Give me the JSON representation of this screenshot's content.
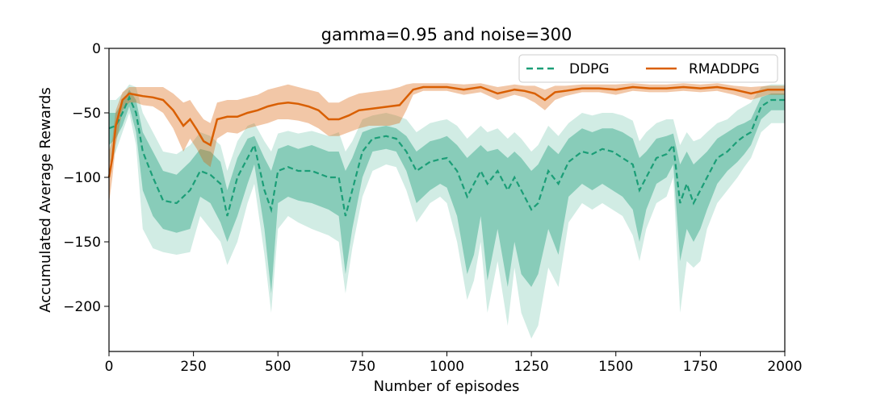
{
  "chart_data": {
    "type": "line",
    "title": "gamma=0.95 and noise=300",
    "xlabel": "Number of episodes",
    "ylabel": "Accumulated Average Rewards",
    "xlim": [
      0,
      2000
    ],
    "ylim": [
      -235,
      0
    ],
    "xticks": [
      0,
      250,
      500,
      750,
      1000,
      1250,
      1500,
      1750,
      2000
    ],
    "yticks": [
      0,
      -50,
      -100,
      -150,
      -200
    ],
    "xtick_labels": [
      "0",
      "250",
      "500",
      "750",
      "1000",
      "1250",
      "1500",
      "1750",
      "2000"
    ],
    "ytick_labels": [
      "0",
      "−50",
      "−100",
      "−150",
      "−200"
    ],
    "legend": {
      "placement": "top-right",
      "entries": [
        "DDPG",
        "RMADDPG"
      ]
    },
    "series": [
      {
        "name": "DDPG",
        "color": "#1b9e77",
        "style": "dashed",
        "x": [
          0,
          20,
          40,
          60,
          80,
          100,
          130,
          160,
          200,
          240,
          270,
          300,
          330,
          350,
          380,
          410,
          430,
          460,
          480,
          500,
          530,
          560,
          600,
          650,
          680,
          700,
          720,
          750,
          780,
          820,
          850,
          880,
          910,
          950,
          980,
          1000,
          1030,
          1060,
          1080,
          1100,
          1120,
          1150,
          1180,
          1200,
          1220,
          1250,
          1270,
          1300,
          1330,
          1360,
          1400,
          1430,
          1460,
          1490,
          1520,
          1550,
          1570,
          1590,
          1620,
          1650,
          1670,
          1690,
          1710,
          1730,
          1750,
          1770,
          1800,
          1830,
          1860,
          1880,
          1900,
          1930,
          1960,
          2000
        ],
        "mean": [
          -62,
          -60,
          -50,
          -38,
          -50,
          -80,
          -100,
          -118,
          -120,
          -110,
          -95,
          -98,
          -105,
          -130,
          -100,
          -85,
          -75,
          -110,
          -125,
          -95,
          -92,
          -95,
          -95,
          -100,
          -100,
          -130,
          -110,
          -80,
          -70,
          -68,
          -70,
          -80,
          -95,
          -88,
          -86,
          -85,
          -95,
          -115,
          -105,
          -95,
          -105,
          -95,
          -110,
          -100,
          -110,
          -125,
          -120,
          -95,
          -105,
          -88,
          -80,
          -82,
          -78,
          -80,
          -85,
          -90,
          -110,
          -100,
          -85,
          -82,
          -75,
          -120,
          -105,
          -120,
          -110,
          -100,
          -85,
          -80,
          -72,
          -68,
          -65,
          -45,
          -40,
          -40
        ],
        "inner_lower": [
          -75,
          -70,
          -60,
          -45,
          -65,
          -110,
          -130,
          -140,
          -143,
          -140,
          -115,
          -120,
          -135,
          -150,
          -130,
          -105,
          -90,
          -140,
          -190,
          -120,
          -115,
          -118,
          -120,
          -125,
          -130,
          -175,
          -140,
          -100,
          -80,
          -78,
          -80,
          -95,
          -120,
          -110,
          -105,
          -108,
          -130,
          -175,
          -160,
          -130,
          -180,
          -140,
          -185,
          -150,
          -175,
          -185,
          -175,
          -140,
          -160,
          -115,
          -105,
          -110,
          -105,
          -110,
          -115,
          -125,
          -150,
          -125,
          -105,
          -100,
          -90,
          -165,
          -140,
          -150,
          -140,
          -125,
          -105,
          -95,
          -88,
          -82,
          -75,
          -55,
          -48,
          -48
        ],
        "inner_upper": [
          -50,
          -50,
          -42,
          -32,
          -40,
          -65,
          -80,
          -95,
          -98,
          -88,
          -78,
          -80,
          -88,
          -110,
          -85,
          -70,
          -68,
          -85,
          -95,
          -78,
          -75,
          -78,
          -75,
          -80,
          -80,
          -95,
          -85,
          -65,
          -62,
          -60,
          -62,
          -68,
          -80,
          -72,
          -70,
          -68,
          -75,
          -85,
          -80,
          -75,
          -80,
          -78,
          -85,
          -80,
          -85,
          -95,
          -90,
          -75,
          -82,
          -70,
          -62,
          -65,
          -62,
          -62,
          -65,
          -70,
          -85,
          -80,
          -70,
          -68,
          -66,
          -90,
          -80,
          -90,
          -85,
          -80,
          -70,
          -65,
          -60,
          -58,
          -55,
          -38,
          -35,
          -35
        ],
        "outer_lower": [
          -90,
          -80,
          -65,
          -50,
          -75,
          -140,
          -155,
          -158,
          -160,
          -158,
          -130,
          -140,
          -150,
          -168,
          -150,
          -120,
          -105,
          -160,
          -205,
          -140,
          -130,
          -135,
          -140,
          -145,
          -150,
          -190,
          -155,
          -115,
          -95,
          -90,
          -92,
          -110,
          -135,
          -120,
          -115,
          -120,
          -150,
          -195,
          -180,
          -150,
          -205,
          -165,
          -215,
          -170,
          -205,
          -225,
          -215,
          -170,
          -185,
          -135,
          -120,
          -125,
          -120,
          -125,
          -130,
          -145,
          -165,
          -140,
          -120,
          -115,
          -100,
          -205,
          -165,
          -170,
          -165,
          -140,
          -120,
          -110,
          -100,
          -92,
          -85,
          -65,
          -58,
          -58
        ],
        "outer_upper": [
          -40,
          -40,
          -35,
          -28,
          -30,
          -50,
          -65,
          -80,
          -82,
          -75,
          -65,
          -68,
          -75,
          -95,
          -72,
          -60,
          -58,
          -72,
          -80,
          -66,
          -64,
          -66,
          -64,
          -68,
          -65,
          -80,
          -72,
          -55,
          -52,
          -50,
          -52,
          -55,
          -65,
          -58,
          -56,
          -55,
          -60,
          -70,
          -65,
          -60,
          -65,
          -62,
          -70,
          -65,
          -70,
          -80,
          -75,
          -60,
          -68,
          -58,
          -50,
          -52,
          -50,
          -50,
          -52,
          -56,
          -72,
          -65,
          -58,
          -55,
          -55,
          -75,
          -65,
          -72,
          -70,
          -65,
          -58,
          -55,
          -48,
          -45,
          -42,
          -30,
          -28,
          -28
        ]
      },
      {
        "name": "RMADDPG",
        "color": "#d95f02",
        "style": "solid",
        "x": [
          0,
          10,
          20,
          40,
          60,
          80,
          100,
          130,
          160,
          190,
          220,
          240,
          260,
          280,
          300,
          320,
          350,
          380,
          410,
          440,
          470,
          500,
          530,
          560,
          590,
          620,
          650,
          680,
          710,
          740,
          770,
          800,
          830,
          860,
          880,
          900,
          930,
          960,
          1000,
          1050,
          1100,
          1150,
          1200,
          1230,
          1260,
          1290,
          1320,
          1350,
          1400,
          1450,
          1500,
          1550,
          1600,
          1650,
          1700,
          1750,
          1800,
          1850,
          1900,
          1950,
          2000
        ],
        "mean": [
          -100,
          -85,
          -60,
          -40,
          -35,
          -36,
          -37,
          -38,
          -40,
          -48,
          -60,
          -55,
          -63,
          -72,
          -75,
          -55,
          -53,
          -53,
          -50,
          -48,
          -45,
          -43,
          -42,
          -43,
          -45,
          -48,
          -55,
          -55,
          -52,
          -48,
          -47,
          -46,
          -45,
          -44,
          -38,
          -32,
          -30,
          -30,
          -30,
          -32,
          -30,
          -35,
          -32,
          -33,
          -35,
          -40,
          -34,
          -33,
          -31,
          -31,
          -32,
          -30,
          -31,
          -31,
          -30,
          -31,
          -30,
          -32,
          -35,
          -32,
          -32
        ],
        "lower": [
          -120,
          -100,
          -75,
          -48,
          -42,
          -42,
          -44,
          -45,
          -50,
          -62,
          -80,
          -70,
          -78,
          -88,
          -92,
          -70,
          -65,
          -66,
          -62,
          -60,
          -58,
          -55,
          -55,
          -56,
          -58,
          -62,
          -68,
          -68,
          -65,
          -62,
          -60,
          -60,
          -60,
          -58,
          -48,
          -36,
          -33,
          -33,
          -33,
          -36,
          -34,
          -40,
          -36,
          -38,
          -42,
          -48,
          -40,
          -37,
          -34,
          -34,
          -36,
          -33,
          -34,
          -34,
          -33,
          -34,
          -33,
          -36,
          -40,
          -36,
          -36
        ],
        "upper": [
          -80,
          -70,
          -48,
          -34,
          -30,
          -30,
          -30,
          -30,
          -30,
          -35,
          -42,
          -40,
          -48,
          -55,
          -58,
          -42,
          -40,
          -40,
          -38,
          -36,
          -32,
          -30,
          -28,
          -30,
          -32,
          -34,
          -42,
          -42,
          -38,
          -35,
          -34,
          -33,
          -32,
          -30,
          -28,
          -27,
          -27,
          -27,
          -27,
          -28,
          -27,
          -30,
          -28,
          -29,
          -29,
          -32,
          -29,
          -29,
          -28,
          -28,
          -28,
          -27,
          -28,
          -28,
          -27,
          -28,
          -27,
          -29,
          -30,
          -29,
          -29
        ]
      }
    ]
  }
}
